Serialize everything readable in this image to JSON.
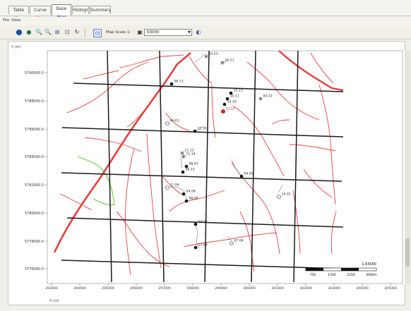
{
  "tabs": [
    "Table View",
    "Curve View",
    "Base Map",
    "Histogr",
    "Summary"
  ],
  "active_tab": 2,
  "menu": [
    "File",
    "View"
  ],
  "toolbar": {
    "map_scale_label": "Map Scale 1:",
    "map_scale_value": "63000"
  },
  "axes": {
    "y_title": "Y (m)",
    "x_title": "X (m)"
  },
  "y_ticks": [
    "5790000.0",
    "5788000.0",
    "5786000.0",
    "5784000.0",
    "5782000.0",
    "5780000.0",
    "5778000.0",
    "5776000.0"
  ],
  "x_ticks": [
    "293000",
    "294000",
    "295000",
    "296000",
    "297000",
    "298000",
    "299000",
    "300000",
    "301000",
    "302000",
    "303000",
    "304000",
    "305000"
  ],
  "wells": [
    {
      "label": "10.23",
      "type": "star"
    },
    {
      "label": "10.21",
      "type": "star"
    },
    {
      "label": "08.13",
      "type": "dot"
    },
    {
      "label": "10.23",
      "type": "dot"
    },
    {
      "label": "10.11",
      "type": "dot"
    },
    {
      "label": "04.22",
      "type": "star"
    },
    {
      "label": "10.10",
      "type": "dot"
    },
    {
      "label": "12.15",
      "type": "dot_red"
    },
    {
      "label": "06.01",
      "type": "open"
    },
    {
      "label": "12.10",
      "type": "dot"
    },
    {
      "label": "11.13",
      "type": "star"
    },
    {
      "label": "11.14",
      "type": "star"
    },
    {
      "label": "08.42",
      "type": "dot"
    },
    {
      "label": "08.12",
      "type": "dot"
    },
    {
      "label": "04.03",
      "type": "dot"
    },
    {
      "label": "11.06",
      "type": "open"
    },
    {
      "label": "04.08",
      "type": "dot"
    },
    {
      "label": "08.08",
      "type": "dot"
    },
    {
      "label": "14.02",
      "type": "open"
    },
    {
      "label": "04.02",
      "type": "dot"
    },
    {
      "label": "07.04",
      "type": "open"
    },
    {
      "label": "12.09",
      "type": "dot"
    }
  ],
  "scale_bar": {
    "ratio": "1:63000",
    "labels": [
      "750",
      "1500",
      "2250",
      "3000m"
    ]
  },
  "colors": {
    "roads": "#e84040",
    "grid": "#1a1a1a",
    "vegetation": "#7ecb4f",
    "well_dot": "#111111",
    "well_red": "#e02020"
  }
}
